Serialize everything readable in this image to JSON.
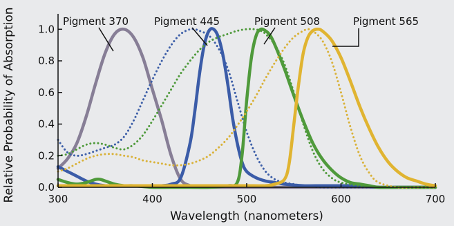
{
  "chart_data": {
    "type": "line",
    "xlabel": "Wavelength (nanometers)",
    "ylabel": "Relative Probability of Absorption",
    "xlim": [
      300,
      700
    ],
    "ylim": [
      0,
      1.15
    ],
    "x_ticks": [
      "300",
      "400",
      "500",
      "600",
      "700"
    ],
    "y_ticks": [
      "0.0",
      "0.2",
      "0.4",
      "0.6",
      "0.8",
      "1.0"
    ],
    "grid": false,
    "annotations": [
      "Pigment 370",
      "Pigment 445",
      "Pigment 508",
      "Pigment 565"
    ],
    "series": [
      {
        "style": "solid",
        "color": "#877e96",
        "x": [
          300,
          310,
          320,
          330,
          340,
          350,
          360,
          370,
          380,
          390,
          400,
          410,
          420,
          430,
          440,
          450,
          460,
          470,
          480,
          500,
          520,
          540,
          560,
          580,
          600,
          620,
          640,
          660,
          680,
          700
        ],
        "y": [
          0.12,
          0.18,
          0.28,
          0.45,
          0.66,
          0.85,
          0.97,
          1.0,
          0.95,
          0.82,
          0.62,
          0.42,
          0.2,
          0.05,
          0.01,
          0.0,
          0.0,
          0.0,
          0.0,
          0.0,
          0.0,
          0.0,
          0.0,
          0.0,
          0.0,
          0.0,
          0.0,
          0.0,
          0.0,
          0.0
        ]
      },
      {
        "style": "dotted",
        "color": "#3d5fa8",
        "x": [
          300,
          310,
          320,
          330,
          340,
          350,
          360,
          370,
          380,
          390,
          400,
          410,
          420,
          430,
          440,
          445,
          450,
          460,
          470,
          480,
          490,
          500,
          510,
          520,
          530,
          540,
          550,
          560,
          580,
          600,
          620,
          640,
          660,
          680,
          700
        ],
        "y": [
          0.3,
          0.22,
          0.2,
          0.21,
          0.23,
          0.25,
          0.27,
          0.32,
          0.42,
          0.55,
          0.68,
          0.8,
          0.9,
          0.97,
          1.0,
          1.0,
          0.99,
          0.96,
          0.88,
          0.75,
          0.55,
          0.35,
          0.2,
          0.1,
          0.05,
          0.03,
          0.02,
          0.01,
          0.0,
          0.0,
          0.0,
          0.0,
          0.0,
          0.0,
          0.0
        ]
      },
      {
        "style": "solid",
        "color": "#3b5ca8",
        "x": [
          300,
          310,
          320,
          330,
          340,
          350,
          360,
          370,
          380,
          390,
          400,
          410,
          420,
          430,
          440,
          445,
          450,
          455,
          460,
          465,
          470,
          475,
          480,
          485,
          490,
          495,
          500,
          510,
          520,
          530,
          540,
          560,
          580,
          600,
          620,
          640,
          660,
          680,
          700
        ],
        "y": [
          0.13,
          0.1,
          0.07,
          0.04,
          0.02,
          0.01,
          0.01,
          0.01,
          0.01,
          0.01,
          0.01,
          0.01,
          0.02,
          0.06,
          0.28,
          0.48,
          0.72,
          0.9,
          0.99,
          1.0,
          0.95,
          0.83,
          0.65,
          0.44,
          0.28,
          0.16,
          0.1,
          0.06,
          0.04,
          0.03,
          0.02,
          0.01,
          0.01,
          0.01,
          0.01,
          0.0,
          0.0,
          0.0,
          0.0
        ]
      },
      {
        "style": "dotted",
        "color": "#4f9a3b",
        "x": [
          300,
          310,
          320,
          330,
          340,
          350,
          360,
          370,
          380,
          390,
          400,
          410,
          420,
          430,
          440,
          450,
          460,
          470,
          480,
          490,
          500,
          508,
          515,
          520,
          530,
          540,
          550,
          560,
          570,
          580,
          590,
          600,
          620,
          640,
          660,
          680,
          700
        ],
        "y": [
          0.2,
          0.21,
          0.24,
          0.27,
          0.28,
          0.27,
          0.25,
          0.24,
          0.27,
          0.33,
          0.42,
          0.52,
          0.62,
          0.72,
          0.8,
          0.87,
          0.92,
          0.95,
          0.97,
          0.99,
          1.0,
          1.0,
          0.99,
          0.97,
          0.9,
          0.78,
          0.6,
          0.4,
          0.23,
          0.12,
          0.06,
          0.03,
          0.01,
          0.0,
          0.0,
          0.0,
          0.0
        ]
      },
      {
        "style": "solid",
        "color": "#4f9a3b",
        "x": [
          300,
          310,
          320,
          330,
          340,
          345,
          350,
          360,
          370,
          380,
          400,
          420,
          440,
          460,
          480,
          490,
          495,
          500,
          505,
          510,
          515,
          520,
          525,
          530,
          540,
          550,
          560,
          570,
          580,
          590,
          600,
          610,
          620,
          630,
          640,
          660,
          680,
          700
        ],
        "y": [
          0.05,
          0.03,
          0.02,
          0.03,
          0.05,
          0.05,
          0.04,
          0.02,
          0.01,
          0.01,
          0.0,
          0.0,
          0.0,
          0.0,
          0.01,
          0.03,
          0.2,
          0.55,
          0.82,
          0.96,
          1.0,
          0.99,
          0.96,
          0.9,
          0.75,
          0.58,
          0.42,
          0.28,
          0.18,
          0.11,
          0.06,
          0.03,
          0.02,
          0.01,
          0.0,
          0.0,
          0.0,
          0.0
        ]
      },
      {
        "style": "dotted",
        "color": "#d9b23a",
        "x": [
          300,
          310,
          320,
          330,
          340,
          350,
          360,
          370,
          380,
          390,
          400,
          410,
          420,
          430,
          440,
          450,
          460,
          470,
          480,
          490,
          500,
          510,
          520,
          530,
          540,
          550,
          560,
          565,
          570,
          580,
          590,
          600,
          610,
          620,
          630,
          640,
          660,
          680,
          700
        ],
        "y": [
          0.1,
          0.12,
          0.15,
          0.18,
          0.2,
          0.21,
          0.21,
          0.2,
          0.19,
          0.17,
          0.16,
          0.15,
          0.14,
          0.14,
          0.15,
          0.17,
          0.2,
          0.25,
          0.31,
          0.39,
          0.48,
          0.58,
          0.69,
          0.79,
          0.88,
          0.95,
          0.99,
          1.0,
          0.99,
          0.93,
          0.8,
          0.6,
          0.38,
          0.2,
          0.09,
          0.03,
          0.0,
          0.0,
          0.0
        ]
      },
      {
        "style": "solid",
        "color": "#e0b431",
        "x": [
          300,
          320,
          340,
          360,
          380,
          400,
          420,
          440,
          460,
          480,
          500,
          520,
          530,
          540,
          545,
          550,
          555,
          560,
          565,
          570,
          575,
          580,
          590,
          600,
          610,
          620,
          630,
          640,
          650,
          660,
          670,
          680,
          690,
          700
        ],
        "y": [
          0.01,
          0.01,
          0.01,
          0.01,
          0.01,
          0.01,
          0.01,
          0.01,
          0.01,
          0.01,
          0.01,
          0.01,
          0.02,
          0.05,
          0.15,
          0.4,
          0.65,
          0.85,
          0.95,
          0.99,
          1.0,
          0.99,
          0.93,
          0.82,
          0.67,
          0.51,
          0.37,
          0.25,
          0.16,
          0.1,
          0.06,
          0.04,
          0.02,
          0.01
        ]
      }
    ]
  }
}
